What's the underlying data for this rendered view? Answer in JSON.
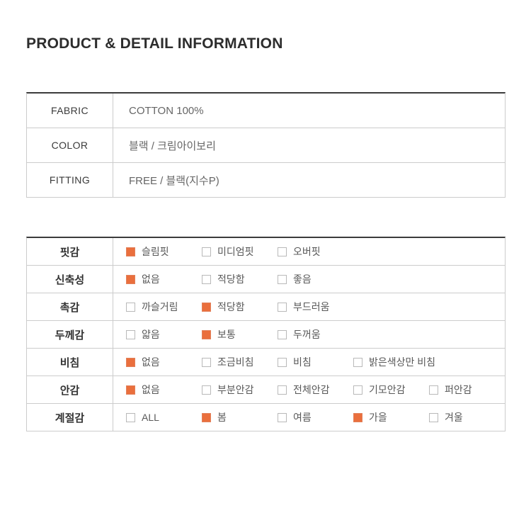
{
  "page": {
    "title": "PRODUCT & DETAIL INFORMATION"
  },
  "colors": {
    "accent": "#EA6F3D",
    "accent_border": "#E2815B",
    "border_dark": "#3C3C3C",
    "border_light": "#CCCCCC"
  },
  "spec_table": {
    "rows": [
      {
        "label": "FABRIC",
        "value": "COTTON 100%"
      },
      {
        "label": "COLOR",
        "value": "블랙 / 크림아이보리"
      },
      {
        "label": "FITTING",
        "value": "FREE / 블랙(지수P)"
      }
    ]
  },
  "detail_table": {
    "rows": [
      {
        "label": "핏감",
        "options": [
          {
            "text": "슬림핏",
            "checked": true
          },
          {
            "text": "미디엄핏",
            "checked": false
          },
          {
            "text": "오버핏",
            "checked": false
          }
        ]
      },
      {
        "label": "신축성",
        "options": [
          {
            "text": "없음",
            "checked": true
          },
          {
            "text": "적당함",
            "checked": false
          },
          {
            "text": "좋음",
            "checked": false
          }
        ]
      },
      {
        "label": "촉감",
        "options": [
          {
            "text": "까슬거림",
            "checked": false
          },
          {
            "text": "적당함",
            "checked": true
          },
          {
            "text": "부드러움",
            "checked": false
          }
        ]
      },
      {
        "label": "두께감",
        "options": [
          {
            "text": "얇음",
            "checked": false
          },
          {
            "text": "보통",
            "checked": true
          },
          {
            "text": "두꺼움",
            "checked": false
          }
        ]
      },
      {
        "label": "비침",
        "options": [
          {
            "text": "없음",
            "checked": true
          },
          {
            "text": "조금비침",
            "checked": false
          },
          {
            "text": "비침",
            "checked": false
          },
          {
            "text": "밝은색상만 비침",
            "checked": false
          }
        ]
      },
      {
        "label": "안감",
        "options": [
          {
            "text": "없음",
            "checked": true
          },
          {
            "text": "부분안감",
            "checked": false
          },
          {
            "text": "전체안감",
            "checked": false
          },
          {
            "text": "기모안감",
            "checked": false
          },
          {
            "text": "퍼안감",
            "checked": false
          }
        ]
      },
      {
        "label": "계절감",
        "options": [
          {
            "text": "ALL",
            "checked": false
          },
          {
            "text": "봄",
            "checked": true
          },
          {
            "text": "여름",
            "checked": false
          },
          {
            "text": "가을",
            "checked": true
          },
          {
            "text": "겨울",
            "checked": false
          }
        ]
      }
    ]
  }
}
